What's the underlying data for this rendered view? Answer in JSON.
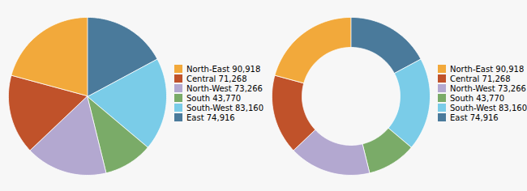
{
  "chart_data": [
    {
      "type": "pie",
      "categories": [
        "North-East  90,918",
        "Central  71,268",
        "North-West  73,266",
        "South  43,770",
        "South-West  83,160",
        "East  74,916"
      ],
      "values": [
        90918,
        71268,
        73266,
        43770,
        83160,
        74916
      ],
      "colors": [
        "#f2a93b",
        "#c0522a",
        "#b3a8d0",
        "#7aab68",
        "#7acce8",
        "#4a7a9b"
      ],
      "legend": "right"
    },
    {
      "type": "donut",
      "categories": [
        "North-East  90,918",
        "Central  71,268",
        "North-West  73,266",
        "South  43,770",
        "South-West  83,160",
        "East  74,916"
      ],
      "values": [
        90918,
        71268,
        73266,
        43770,
        83160,
        74916
      ],
      "colors": [
        "#f2a93b",
        "#c0522a",
        "#b3a8d0",
        "#7aab68",
        "#7acce8",
        "#4a7a9b"
      ],
      "legend": "right"
    }
  ]
}
